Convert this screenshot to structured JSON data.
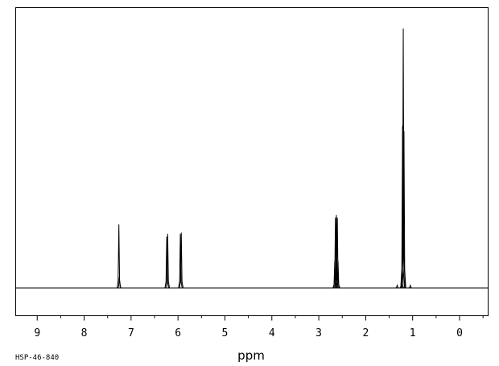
{
  "chart_data": {
    "type": "line",
    "title": "",
    "xlabel": "ppm",
    "ylabel": "",
    "x_reversed": true,
    "xlim": [
      9.45,
      -0.6
    ],
    "ylim": [
      0,
      1
    ],
    "x_ticks": [
      "9",
      "8",
      "7",
      "6",
      "5",
      "4",
      "3",
      "2",
      "1",
      "0"
    ],
    "grid": false,
    "legend": "none",
    "peaks": [
      {
        "ppm": 7.26,
        "height": 0.235
      },
      {
        "ppm": 7.25,
        "height": 0.04
      },
      {
        "ppm": 6.24,
        "height": 0.19
      },
      {
        "ppm": 6.22,
        "height": 0.2
      },
      {
        "ppm": 5.95,
        "height": 0.2
      },
      {
        "ppm": 5.93,
        "height": 0.205
      },
      {
        "ppm": 2.66,
        "height": 0.1
      },
      {
        "ppm": 2.645,
        "height": 0.26
      },
      {
        "ppm": 2.625,
        "height": 0.27
      },
      {
        "ppm": 2.605,
        "height": 0.26
      },
      {
        "ppm": 2.59,
        "height": 0.1
      },
      {
        "ppm": 1.23,
        "height": 0.06
      },
      {
        "ppm": 1.215,
        "height": 0.6
      },
      {
        "ppm": 1.2,
        "height": 0.96
      },
      {
        "ppm": 1.185,
        "height": 0.58
      },
      {
        "ppm": 1.33,
        "height": 0.01
      },
      {
        "ppm": 1.05,
        "height": 0.01
      }
    ]
  },
  "sample_id": "HSP-46-840"
}
